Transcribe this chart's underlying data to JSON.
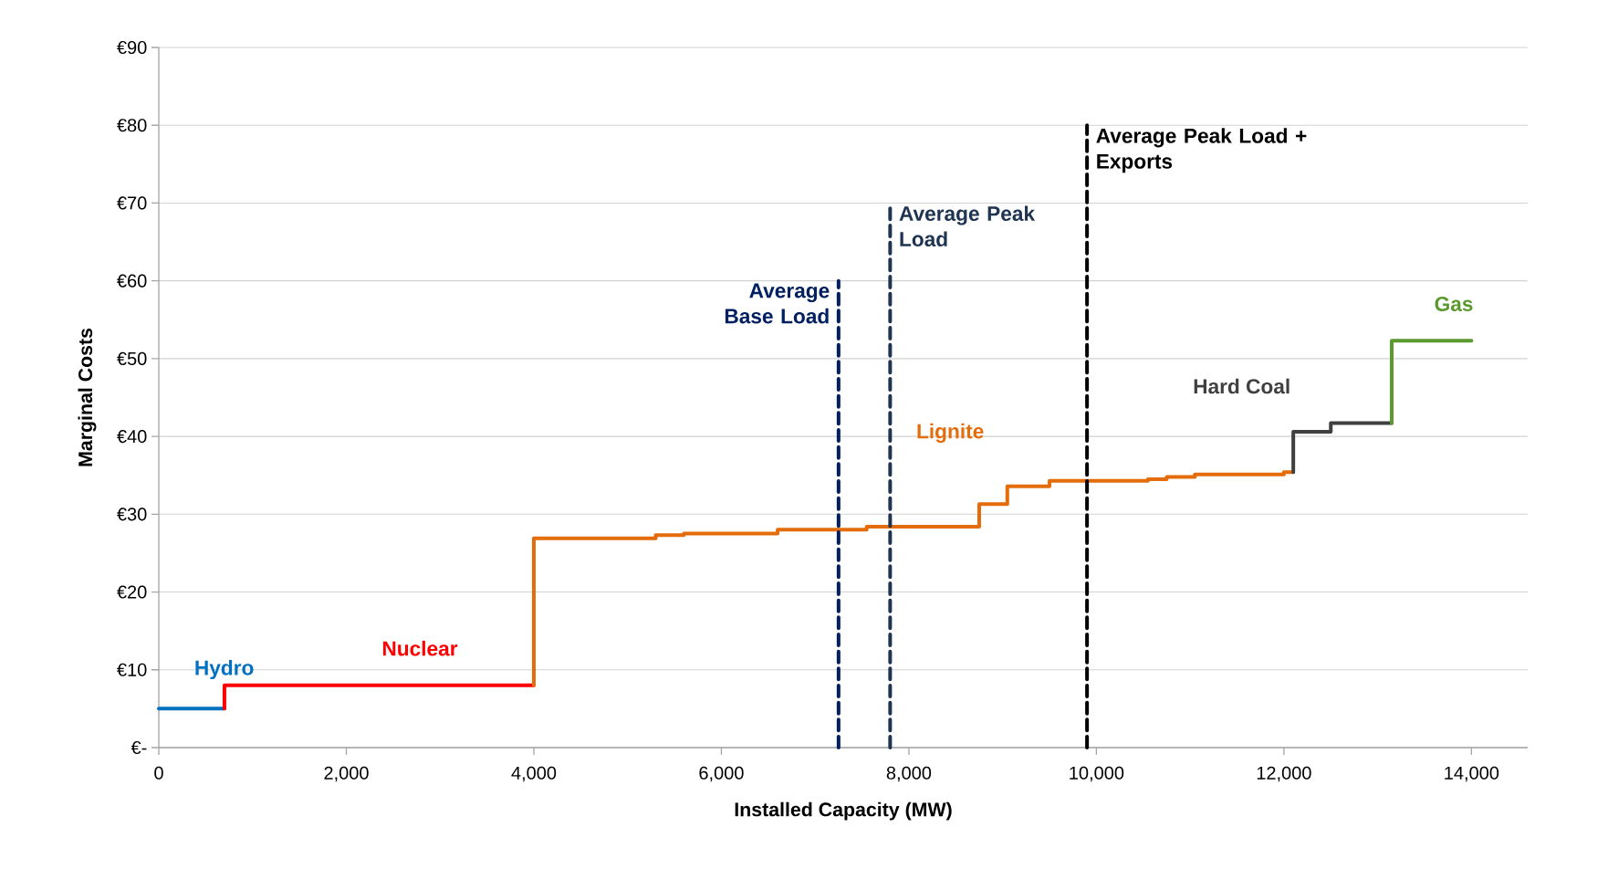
{
  "chart_data": {
    "type": "step",
    "xlabel": "Installed Capacity (MW)",
    "ylabel": "Marginal Costs",
    "xlim": [
      0,
      14600
    ],
    "ylim": [
      0,
      90
    ],
    "xticks": [
      0,
      {
        "value": 2000,
        "label": "2,000"
      },
      {
        "value": 4000,
        "label": "4,000"
      },
      {
        "value": 6000,
        "label": "6,000"
      },
      {
        "value": 8000,
        "label": "8,000"
      },
      {
        "value": 10000,
        "label": "10,000"
      },
      {
        "value": 12000,
        "label": "12,000"
      },
      {
        "value": 14000,
        "label": "14,000"
      }
    ],
    "yticks": [
      {
        "value": 0,
        "label": "€-"
      },
      {
        "value": 10,
        "label": "€10"
      },
      {
        "value": 20,
        "label": "€20"
      },
      {
        "value": 30,
        "label": "€30"
      },
      {
        "value": 40,
        "label": "€40"
      },
      {
        "value": 50,
        "label": "€50"
      },
      {
        "value": 60,
        "label": "€60"
      },
      {
        "value": 70,
        "label": "€70"
      },
      {
        "value": 80,
        "label": "€80"
      },
      {
        "value": 90,
        "label": "€90"
      }
    ],
    "grid": "y",
    "series": [
      {
        "name": "Hydro",
        "color": "#0070c0",
        "x": [
          0,
          700
        ],
        "values": [
          5,
          5
        ]
      },
      {
        "name": "Nuclear",
        "color": "#ff0000",
        "x": [
          700,
          700,
          4000
        ],
        "values": [
          5,
          8,
          8
        ]
      },
      {
        "name": "Lignite",
        "color": "#e46c0a",
        "x": [
          4000,
          4000,
          5300,
          5600,
          6600,
          7550,
          8750,
          9050,
          9500,
          10550,
          10750,
          11050,
          12000,
          12100
        ],
        "values": [
          8,
          26.9,
          27.3,
          27.5,
          28.0,
          28.4,
          31.3,
          33.6,
          34.3,
          34.5,
          34.8,
          35.1,
          35.4,
          35.4
        ]
      },
      {
        "name": "Hard Coal",
        "color": "#404040",
        "x": [
          12100,
          12100,
          12500,
          13150
        ],
        "values": [
          35.4,
          40.6,
          41.7,
          41.7
        ]
      },
      {
        "name": "Gas",
        "color": "#5a9a2f",
        "x": [
          13150,
          13150,
          14000
        ],
        "values": [
          41.7,
          52.3,
          52.3
        ]
      },
      {
        "name": "Average Base Load",
        "type": "line",
        "line_style": "dashed",
        "color": "#002060",
        "x": [
          7250,
          7250
        ],
        "values": [
          0,
          60
        ]
      },
      {
        "name": "Average Peak Load",
        "type": "line",
        "line_style": "dashed",
        "color": "#1f3450",
        "x": [
          7800,
          7800
        ],
        "values": [
          0,
          70
        ]
      },
      {
        "name": "Average Peak Load + Exports",
        "type": "line",
        "line_style": "dashed",
        "color": "#000000",
        "x": [
          9900,
          9900
        ],
        "values": [
          0,
          80
        ]
      }
    ]
  }
}
